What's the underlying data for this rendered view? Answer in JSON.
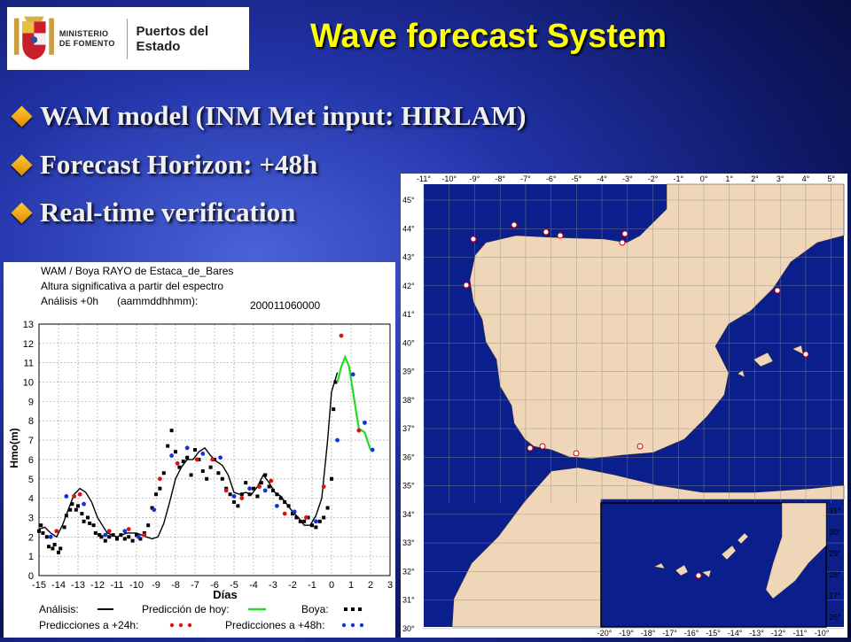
{
  "header": {
    "ministry": "MINISTERIO DE FOMENTO",
    "agency": "Puertos del Estado",
    "title": "Wave forecast System"
  },
  "bullets": [
    "WAM model (INM Met input: HIRLAM)",
    "Forecast Horizon: +48h",
    "Real-time verification"
  ],
  "chart_data": {
    "type": "line",
    "title": "WAM / Boya RAYO de Estaca_de_Bares",
    "subtitle": "Altura significativa a partir del espectro",
    "analysis_label": "Análisis +0h",
    "analysis_format": "(aammddhhmm):",
    "analysis_date": "200011060000",
    "xlabel": "Días",
    "ylabel": "Hmo(m)",
    "xlim": [
      -15,
      3
    ],
    "ylim": [
      0,
      13
    ],
    "xticks": [
      -15,
      -14,
      -13,
      -12,
      -11,
      -10,
      -9,
      -8,
      -7,
      -6,
      -5,
      -4,
      -3,
      -2,
      -1,
      0,
      1,
      2,
      3
    ],
    "yticks": [
      0,
      1,
      2,
      3,
      4,
      5,
      6,
      7,
      8,
      9,
      10,
      11,
      12,
      13
    ],
    "legend": {
      "analysis": "Análisis:",
      "today": "Predicción de hoy:",
      "buoy": "Boya:",
      "p24": "Predicciones a +24h:",
      "p48": "Predicciones a +48h:"
    },
    "colors": {
      "analysis": "#000000",
      "today": "#22dd22",
      "buoy": "#000000",
      "p24": "#dd1111",
      "p48": "#1133dd"
    },
    "series": [
      {
        "name": "Análisis",
        "x": [
          -15,
          -14.7,
          -14.4,
          -14.1,
          -13.8,
          -13.5,
          -13.2,
          -12.9,
          -12.6,
          -12.3,
          -12,
          -11.5,
          -11,
          -10.5,
          -10,
          -9.5,
          -9.2,
          -8.9,
          -8.6,
          -8.3,
          -8,
          -7.7,
          -7.4,
          -7.1,
          -6.8,
          -6.5,
          -6.2,
          -5.9,
          -5.6,
          -5.3,
          -5,
          -4.7,
          -4.4,
          -4.1,
          -3.8,
          -3.5,
          -3.2,
          -2.9,
          -2.6,
          -2.3,
          -2,
          -1.7,
          -1.4,
          -1.1,
          -0.8,
          -0.5,
          -0.2,
          0,
          0.3
        ],
        "values": [
          2.4,
          2.5,
          2.2,
          2.0,
          2.6,
          3.4,
          4.2,
          4.5,
          4.3,
          3.8,
          3.0,
          2.2,
          2.0,
          2.2,
          2.2,
          2.0,
          1.9,
          2.0,
          2.7,
          3.8,
          5.0,
          5.6,
          6.0,
          6.0,
          6.4,
          6.6,
          6.2,
          5.9,
          5.7,
          5.2,
          4.3,
          4.2,
          4.3,
          4.2,
          4.6,
          5.2,
          4.8,
          4.3,
          4.1,
          3.7,
          3.3,
          3.0,
          2.6,
          2.6,
          3.1,
          4.0,
          7.0,
          9.5,
          10.5
        ]
      },
      {
        "name": "Predicción de hoy",
        "x": [
          0.3,
          0.5,
          0.7,
          0.9,
          1.1,
          1.4,
          1.7,
          2.0
        ],
        "values": [
          10.0,
          10.8,
          11.3,
          10.8,
          9.5,
          7.6,
          7.4,
          6.5
        ]
      },
      {
        "name": "Predicciones a +24h",
        "x": [
          -14.1,
          -13.2,
          -12.9,
          -11.4,
          -10.4,
          -9.6,
          -8.8,
          -7.9,
          -6.9,
          -6.1,
          -5.4,
          -4.6,
          -3.7,
          -3.1,
          -2.4,
          -1.3,
          -0.4,
          0.5,
          1.4
        ],
        "values": [
          2.3,
          4.1,
          4.2,
          2.3,
          2.4,
          2.1,
          5.0,
          5.8,
          6.0,
          6.0,
          4.4,
          4.0,
          4.6,
          4.9,
          3.2,
          3.0,
          4.6,
          12.4,
          7.5
        ]
      },
      {
        "name": "Predicciones a +48h",
        "x": [
          -14.4,
          -13.6,
          -12.7,
          -11.6,
          -10.6,
          -9.9,
          -9.1,
          -8.2,
          -7.4,
          -6.6,
          -5.7,
          -5.0,
          -4.2,
          -3.4,
          -2.8,
          -1.9,
          -0.8,
          0.3,
          1.1,
          1.7,
          2.1
        ],
        "values": [
          2.0,
          4.1,
          3.7,
          2.1,
          2.3,
          2.0,
          3.4,
          6.2,
          6.6,
          6.3,
          6.1,
          4.1,
          4.5,
          4.4,
          3.6,
          3.3,
          2.8,
          7.0,
          10.4,
          7.9,
          6.5
        ]
      },
      {
        "name": "Boya",
        "x": [
          -15,
          -14.9,
          -14.8,
          -14.6,
          -14.5,
          -14.3,
          -14.2,
          -14.0,
          -13.9,
          -13.7,
          -13.6,
          -13.4,
          -13.3,
          -13.1,
          -13.0,
          -12.8,
          -12.7,
          -12.5,
          -12.4,
          -12.2,
          -12.1,
          -11.9,
          -11.8,
          -11.6,
          -11.4,
          -11.2,
          -11.0,
          -10.8,
          -10.6,
          -10.4,
          -10.2,
          -10.0,
          -9.8,
          -9.6,
          -9.4,
          -9.2,
          -9.0,
          -8.8,
          -8.6,
          -8.4,
          -8.2,
          -8.0,
          -7.8,
          -7.6,
          -7.4,
          -7.2,
          -7.0,
          -6.8,
          -6.6,
          -6.4,
          -6.2,
          -6.0,
          -5.8,
          -5.6,
          -5.4,
          -5.2,
          -5.0,
          -4.8,
          -4.6,
          -4.4,
          -4.2,
          -4.0,
          -3.8,
          -3.6,
          -3.4,
          -3.2,
          -3.0,
          -2.8,
          -2.6,
          -2.4,
          -2.2,
          -2.0,
          -1.8,
          -1.6,
          -1.4,
          -1.2,
          -1.0,
          -0.8,
          -0.6,
          -0.4,
          -0.2,
          0.0,
          0.1,
          0.2
        ],
        "values": [
          2.3,
          2.6,
          2.2,
          2.0,
          1.5,
          1.4,
          1.6,
          1.2,
          1.4,
          2.5,
          3.1,
          3.4,
          3.7,
          3.4,
          3.6,
          3.2,
          2.8,
          3.0,
          2.7,
          2.6,
          2.2,
          2.1,
          2.0,
          1.8,
          2.0,
          2.1,
          1.9,
          2.1,
          1.9,
          2.0,
          1.8,
          2.1,
          1.9,
          2.2,
          2.6,
          3.5,
          4.2,
          4.5,
          5.3,
          6.7,
          7.5,
          6.4,
          5.6,
          5.9,
          6.1,
          5.2,
          6.5,
          6.0,
          5.4,
          5.0,
          5.6,
          6.0,
          5.3,
          5.0,
          4.5,
          4.2,
          3.8,
          3.6,
          4.2,
          4.8,
          4.2,
          4.5,
          4.1,
          4.8,
          5.2,
          4.6,
          4.4,
          4.2,
          4.0,
          3.8,
          3.6,
          3.2,
          3.0,
          2.8,
          2.8,
          3.0,
          2.6,
          2.5,
          2.8,
          3.0,
          3.5,
          5.0,
          8.6,
          10.0
        ]
      }
    ]
  },
  "map": {
    "lon_labels": [
      "-11°",
      "-10°",
      "-9°",
      "-8°",
      "-7°",
      "-6°",
      "-5°",
      "-4°",
      "-3°",
      "-2°",
      "-1°",
      "0°",
      "1°",
      "2°",
      "3°",
      "4°",
      "5°"
    ],
    "lat_labels": [
      "45°",
      "44°",
      "43°",
      "42°",
      "41°",
      "40°",
      "39°",
      "38°",
      "37°",
      "36°",
      "35°",
      "34°",
      "33°",
      "32°",
      "31°",
      "30°"
    ],
    "inset_lon_labels": [
      "-20°",
      "-19°",
      "-18°",
      "-17°",
      "-16°",
      "-15°",
      "-14°",
      "-13°",
      "-12°",
      "-11°",
      "-10°"
    ],
    "inset_lat_labels": [
      "31°",
      "30°",
      "29°",
      "28°",
      "27°",
      "26°"
    ],
    "colors": {
      "sea": "#0a1f8c",
      "land": "#f0d6b8"
    }
  }
}
